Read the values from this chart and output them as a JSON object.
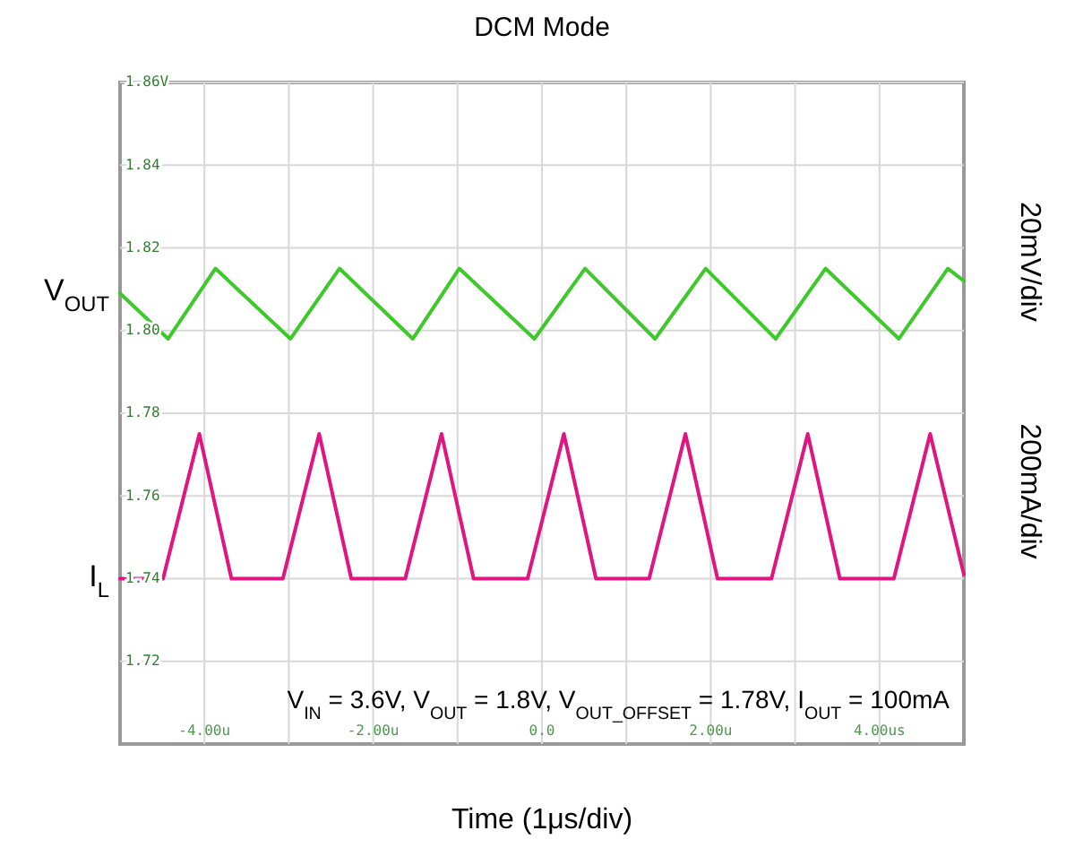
{
  "chart_data": {
    "type": "line",
    "title": "DCM Mode",
    "xlabel": "Time (1μs/div)",
    "xlim": [
      -5,
      5
    ],
    "xticks": [
      {
        "value": -4,
        "label": "-4.00u"
      },
      {
        "value": -3,
        "label": null
      },
      {
        "value": -2,
        "label": "-2.00u"
      },
      {
        "value": -1,
        "label": null
      },
      {
        "value": 0,
        "label": "0.0"
      },
      {
        "value": 1,
        "label": null
      },
      {
        "value": 2,
        "label": "2.00u"
      },
      {
        "value": 3,
        "label": null
      },
      {
        "value": 4,
        "label": "4.00us"
      }
    ],
    "ylim": [
      1.7,
      1.86
    ],
    "yticks": [
      {
        "value": 1.72,
        "label": "1.72"
      },
      {
        "value": 1.74,
        "label": "1.74"
      },
      {
        "value": 1.76,
        "label": "1.76"
      },
      {
        "value": 1.78,
        "label": "1.78"
      },
      {
        "value": 1.8,
        "label": "1.80"
      },
      {
        "value": 1.82,
        "label": "1.82"
      },
      {
        "value": 1.84,
        "label": "1.84"
      },
      {
        "value": 1.86,
        "label": "1.86V"
      }
    ],
    "grid": true,
    "legend": false,
    "marker": "none",
    "line_style": "solid",
    "series": [
      {
        "name": "V$_{OUT}$",
        "color": "#3ec92a",
        "x": [
          -5,
          -4.43,
          -3.87,
          -2.98,
          -2.4,
          -1.53,
          -0.98,
          -0.09,
          0.51,
          1.34,
          1.94,
          2.77,
          3.36,
          4.23,
          4.81,
          5
        ],
        "values": [
          1.809,
          1.798,
          1.815,
          1.798,
          1.815,
          1.798,
          1.815,
          1.798,
          1.815,
          1.798,
          1.815,
          1.798,
          1.815,
          1.798,
          1.815,
          1.812
        ]
      },
      {
        "name": "I$_{L}$",
        "color": "#e0157f",
        "x": [
          -5,
          -4.49,
          -4.06,
          -3.68,
          -3.07,
          -2.64,
          -2.26,
          -1.62,
          -1.19,
          -0.81,
          -0.17,
          0.26,
          0.64,
          1.27,
          1.7,
          2.08,
          2.72,
          3.15,
          3.53,
          4.17,
          4.6,
          5
        ],
        "values": [
          1.74,
          1.74,
          1.775,
          1.74,
          1.74,
          1.775,
          1.74,
          1.74,
          1.775,
          1.74,
          1.74,
          1.775,
          1.74,
          1.74,
          1.775,
          1.74,
          1.74,
          1.775,
          1.74,
          1.74,
          1.775,
          1.741
        ]
      }
    ],
    "annotations": [
      "V$_{IN}$ = 3.6V, V$_{OUT}$ = 1.8V, V$_{OUT_OFFSET}$ = 1.78V, I$_{OUT}$ = 100mA",
      "20mV/div",
      "200mA/div"
    ]
  }
}
